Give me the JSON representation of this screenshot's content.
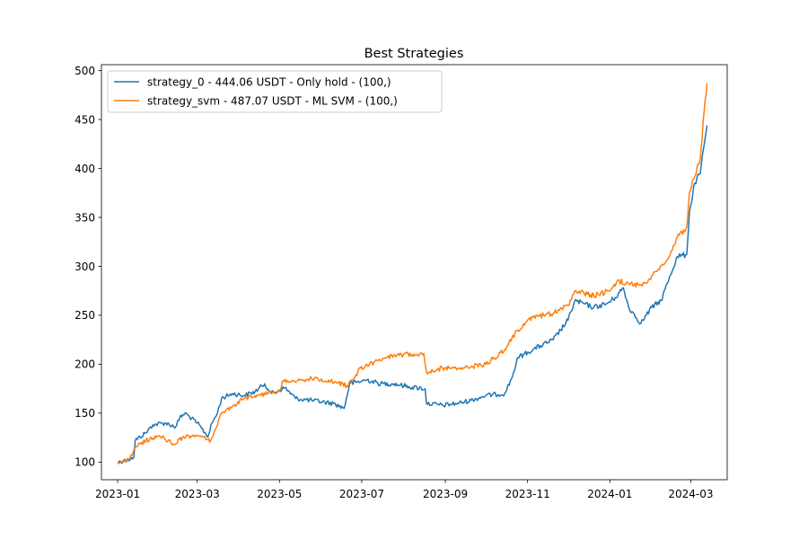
{
  "chart_data": {
    "type": "line",
    "title": "Best Strategies",
    "xlabel": "",
    "ylabel": "",
    "ylim": [
      82,
      506
    ],
    "xlim": [
      "2022-12-20",
      "2024-03-28"
    ],
    "x_ticks": [
      "2023-01",
      "2023-03",
      "2023-05",
      "2023-07",
      "2023-09",
      "2023-11",
      "2024-01",
      "2024-03"
    ],
    "y_ticks": [
      100,
      150,
      200,
      250,
      300,
      350,
      400,
      450,
      500
    ],
    "grid": false,
    "legend_position": "upper-left",
    "series": [
      {
        "name": "strategy_0 - 444.06 USDT - Only hold - (100,)",
        "color": "#1f77b4",
        "points": [
          [
            "2023-01-01",
            100
          ],
          [
            "2023-01-08",
            102
          ],
          [
            "2023-01-13",
            105
          ],
          [
            "2023-01-14",
            122
          ],
          [
            "2023-01-22",
            130
          ],
          [
            "2023-01-27",
            138
          ],
          [
            "2023-02-05",
            140
          ],
          [
            "2023-02-13",
            136
          ],
          [
            "2023-02-16",
            145
          ],
          [
            "2023-02-20",
            150
          ],
          [
            "2023-03-01",
            140
          ],
          [
            "2023-03-09",
            126
          ],
          [
            "2023-03-12",
            140
          ],
          [
            "2023-03-16",
            150
          ],
          [
            "2023-03-19",
            165
          ],
          [
            "2023-03-27",
            170
          ],
          [
            "2023-04-05",
            168
          ],
          [
            "2023-04-13",
            172
          ],
          [
            "2023-04-20",
            180
          ],
          [
            "2023-04-25",
            170
          ],
          [
            "2023-05-05",
            176
          ],
          [
            "2023-05-13",
            165
          ],
          [
            "2023-05-25",
            163
          ],
          [
            "2023-06-10",
            160
          ],
          [
            "2023-06-18",
            155
          ],
          [
            "2023-06-22",
            180
          ],
          [
            "2023-07-05",
            184
          ],
          [
            "2023-07-15",
            180
          ],
          [
            "2023-07-25",
            180
          ],
          [
            "2023-08-05",
            177
          ],
          [
            "2023-08-17",
            175
          ],
          [
            "2023-08-18",
            160
          ],
          [
            "2023-08-30",
            158
          ],
          [
            "2023-09-10",
            160
          ],
          [
            "2023-09-20",
            163
          ],
          [
            "2023-10-01",
            168
          ],
          [
            "2023-10-15",
            170
          ],
          [
            "2023-10-20",
            185
          ],
          [
            "2023-10-25",
            207
          ],
          [
            "2023-11-05",
            215
          ],
          [
            "2023-11-20",
            225
          ],
          [
            "2023-12-01",
            245
          ],
          [
            "2023-12-06",
            265
          ],
          [
            "2023-12-20",
            258
          ],
          [
            "2023-12-30",
            262
          ],
          [
            "2024-01-05",
            268
          ],
          [
            "2024-01-11",
            278
          ],
          [
            "2024-01-15",
            258
          ],
          [
            "2024-01-24",
            242
          ],
          [
            "2024-02-01",
            258
          ],
          [
            "2024-02-08",
            265
          ],
          [
            "2024-02-14",
            288
          ],
          [
            "2024-02-20",
            310
          ],
          [
            "2024-02-27",
            312
          ],
          [
            "2024-02-29",
            355
          ],
          [
            "2024-03-04",
            385
          ],
          [
            "2024-03-08",
            395
          ],
          [
            "2024-03-11",
            425
          ],
          [
            "2024-03-13",
            444
          ]
        ]
      },
      {
        "name": "strategy_svm - 487.07 USDT - ML SVM - (100,)",
        "color": "#ff7f0e",
        "points": [
          [
            "2023-01-01",
            100
          ],
          [
            "2023-01-10",
            103
          ],
          [
            "2023-01-15",
            116
          ],
          [
            "2023-01-22",
            122
          ],
          [
            "2023-02-01",
            127
          ],
          [
            "2023-02-12",
            118
          ],
          [
            "2023-02-18",
            125
          ],
          [
            "2023-03-01",
            127
          ],
          [
            "2023-03-11",
            122
          ],
          [
            "2023-03-15",
            135
          ],
          [
            "2023-03-19",
            150
          ],
          [
            "2023-03-28",
            158
          ],
          [
            "2023-04-05",
            165
          ],
          [
            "2023-04-15",
            168
          ],
          [
            "2023-04-25",
            172
          ],
          [
            "2023-05-01",
            172
          ],
          [
            "2023-05-03",
            182
          ],
          [
            "2023-05-12",
            183
          ],
          [
            "2023-05-25",
            185
          ],
          [
            "2023-06-08",
            183
          ],
          [
            "2023-06-20",
            178
          ],
          [
            "2023-06-25",
            185
          ],
          [
            "2023-06-30",
            196
          ],
          [
            "2023-07-10",
            202
          ],
          [
            "2023-07-20",
            207
          ],
          [
            "2023-08-01",
            210
          ],
          [
            "2023-08-16",
            211
          ],
          [
            "2023-08-18",
            192
          ],
          [
            "2023-08-30",
            196
          ],
          [
            "2023-09-15",
            196
          ],
          [
            "2023-10-01",
            200
          ],
          [
            "2023-10-15",
            215
          ],
          [
            "2023-10-25",
            235
          ],
          [
            "2023-11-05",
            248
          ],
          [
            "2023-11-20",
            252
          ],
          [
            "2023-12-01",
            260
          ],
          [
            "2023-12-06",
            275
          ],
          [
            "2023-12-20",
            270
          ],
          [
            "2024-01-01",
            275
          ],
          [
            "2024-01-08",
            285
          ],
          [
            "2024-01-15",
            282
          ],
          [
            "2024-01-25",
            280
          ],
          [
            "2024-02-05",
            295
          ],
          [
            "2024-02-14",
            310
          ],
          [
            "2024-02-20",
            330
          ],
          [
            "2024-02-27",
            340
          ],
          [
            "2024-02-29",
            375
          ],
          [
            "2024-03-04",
            392
          ],
          [
            "2024-03-08",
            410
          ],
          [
            "2024-03-11",
            460
          ],
          [
            "2024-03-13",
            487
          ]
        ]
      }
    ]
  }
}
